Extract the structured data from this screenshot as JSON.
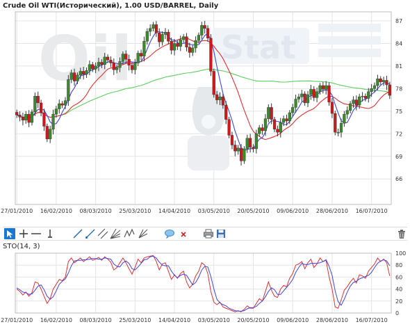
{
  "title": "Crude Oil WTI(Исторический), 1.00 USD/BARREL, Daily",
  "watermark": "OilStat",
  "toolbar": {
    "icons": [
      "cursor-icon",
      "crosshair-icon",
      "horizontal-line-icon",
      "vertical-line-icon",
      "trend-line-icon",
      "ray-icon",
      "channel-icon",
      "fibonacci-fan-icon",
      "wave-icon",
      "pitchfork-icon",
      "comment-icon",
      "delete-x-icon",
      "print-icon",
      "save-icon",
      "trash-icon"
    ]
  },
  "indicator_label": "STO(14, 3)",
  "colors": {
    "up_candle": "#3a8a2a",
    "down_candle": "#cc1a1a",
    "ma_fast": "#3b46e0",
    "ma_mid": "#e03030",
    "ma_slow": "#5ccf5c",
    "sto_k": "#e03030",
    "sto_d": "#3b46e0",
    "grid": "#e4e4e4",
    "active_tool": "#1976d2"
  },
  "chart_data": [
    {
      "type": "candlestick",
      "title": "Crude Oil WTI(Исторический), 1.00 USD/BARREL, Daily",
      "x_ticks": [
        "27/01/2010",
        "16/02/2010",
        "08/03/2010",
        "25/03/2010",
        "14/04/2010",
        "03/05/2010",
        "20/05/2010",
        "09/06/2010",
        "28/06/2010",
        "16/07/2010"
      ],
      "y_ticks": [
        66,
        69,
        72,
        75,
        78,
        81,
        84,
        87
      ],
      "ylim": [
        62.6,
        88.2
      ],
      "x_count": 124,
      "x_tick_index": [
        0,
        13,
        26,
        39,
        52,
        65,
        78,
        91,
        104,
        117
      ],
      "grid": true,
      "close": [
        74.5,
        74.2,
        73.8,
        74.6,
        73.5,
        74.9,
        77.0,
        76.1,
        74.8,
        73.0,
        71.3,
        72.6,
        74.6,
        75.3,
        76.0,
        75.8,
        76.4,
        79.2,
        80.1,
        79.0,
        79.8,
        80.3,
        79.9,
        80.4,
        81.2,
        80.6,
        81.0,
        81.5,
        81.2,
        82.2,
        81.8,
        81.4,
        80.5,
        80.8,
        81.6,
        82.6,
        81.9,
        81.1,
        80.5,
        81.4,
        82.7,
        82.3,
        84.3,
        85.6,
        86.0,
        86.5,
        85.4,
        84.2,
        85.2,
        85.5,
        84.3,
        83.1,
        84.0,
        83.6,
        84.5,
        84.9,
        83.5,
        82.8,
        83.4,
        84.4,
        85.1,
        86.4,
        86.0,
        84.7,
        80.3,
        77.2,
        76.5,
        76.9,
        75.8,
        73.9,
        71.8,
        70.5,
        69.7,
        70.1,
        68.4,
        70.0,
        71.4,
        70.2,
        70.0,
        72.0,
        72.8,
        72.4,
        74.0,
        75.5,
        73.9,
        72.6,
        72.2,
        73.5,
        74.0,
        73.7,
        74.8,
        75.5,
        76.6,
        76.9,
        77.3,
        76.1,
        77.2,
        77.9,
        76.8,
        77.6,
        78.4,
        77.9,
        78.4,
        76.2,
        74.7,
        72.2,
        72.2,
        73.4,
        74.6,
        75.1,
        76.0,
        76.5,
        75.8,
        76.9,
        77.0,
        76.7,
        77.6,
        78.0,
        78.4,
        79.3,
        78.9,
        79.1,
        78.5,
        77.1
      ],
      "series_names_visible": false
    },
    {
      "type": "line",
      "title": "STO(14, 3)",
      "y_ticks": [
        0,
        20,
        40,
        60,
        80,
        100
      ],
      "ylim": [
        0,
        100
      ],
      "x_ticks": [
        "27/01/2010",
        "16/02/2010",
        "08/03/2010",
        "25/03/2010",
        "14/04/2010",
        "03/05/2010",
        "20/05/2010",
        "09/06/2010",
        "28/06/2010",
        "16/07/2010"
      ],
      "k": [
        40,
        36,
        30,
        35,
        28,
        34,
        52,
        50,
        40,
        28,
        16,
        24,
        40,
        48,
        56,
        54,
        60,
        86,
        92,
        84,
        88,
        92,
        86,
        90,
        94,
        88,
        90,
        93,
        88,
        94,
        90,
        85,
        72,
        76,
        84,
        92,
        84,
        74,
        65,
        76,
        90,
        84,
        92,
        94,
        95,
        96,
        86,
        72,
        82,
        84,
        70,
        56,
        64,
        58,
        66,
        70,
        52,
        42,
        48,
        62,
        70,
        84,
        80,
        66,
        36,
        18,
        14,
        18,
        10,
        8,
        6,
        4,
        2,
        4,
        2,
        6,
        12,
        8,
        8,
        16,
        24,
        20,
        36,
        52,
        38,
        28,
        26,
        40,
        46,
        44,
        58,
        66,
        80,
        82,
        86,
        74,
        84,
        90,
        76,
        82,
        92,
        86,
        88,
        60,
        40,
        10,
        8,
        22,
        38,
        44,
        52,
        58,
        50,
        64,
        62,
        58,
        70,
        76,
        82,
        92,
        86,
        90,
        84,
        62
      ],
      "d": [
        42,
        39,
        35,
        34,
        31,
        32,
        38,
        45,
        47,
        39,
        28,
        23,
        27,
        37,
        48,
        53,
        57,
        67,
        79,
        87,
        88,
        88,
        89,
        89,
        90,
        91,
        91,
        90,
        90,
        92,
        91,
        90,
        82,
        78,
        77,
        84,
        87,
        83,
        74,
        72,
        77,
        83,
        89,
        90,
        94,
        95,
        92,
        85,
        80,
        79,
        79,
        70,
        63,
        59,
        63,
        65,
        63,
        55,
        47,
        51,
        60,
        72,
        78,
        77,
        61,
        40,
        23,
        17,
        14,
        12,
        8,
        6,
        4,
        3,
        3,
        4,
        7,
        9,
        9,
        11,
        16,
        20,
        27,
        36,
        42,
        39,
        31,
        31,
        37,
        43,
        49,
        56,
        68,
        76,
        83,
        81,
        81,
        83,
        83,
        83,
        84,
        86,
        89,
        78,
        63,
        37,
        19,
        13,
        23,
        35,
        45,
        51,
        53,
        57,
        59,
        61,
        63,
        68,
        76,
        83,
        87,
        89,
        87,
        79
      ]
    }
  ]
}
